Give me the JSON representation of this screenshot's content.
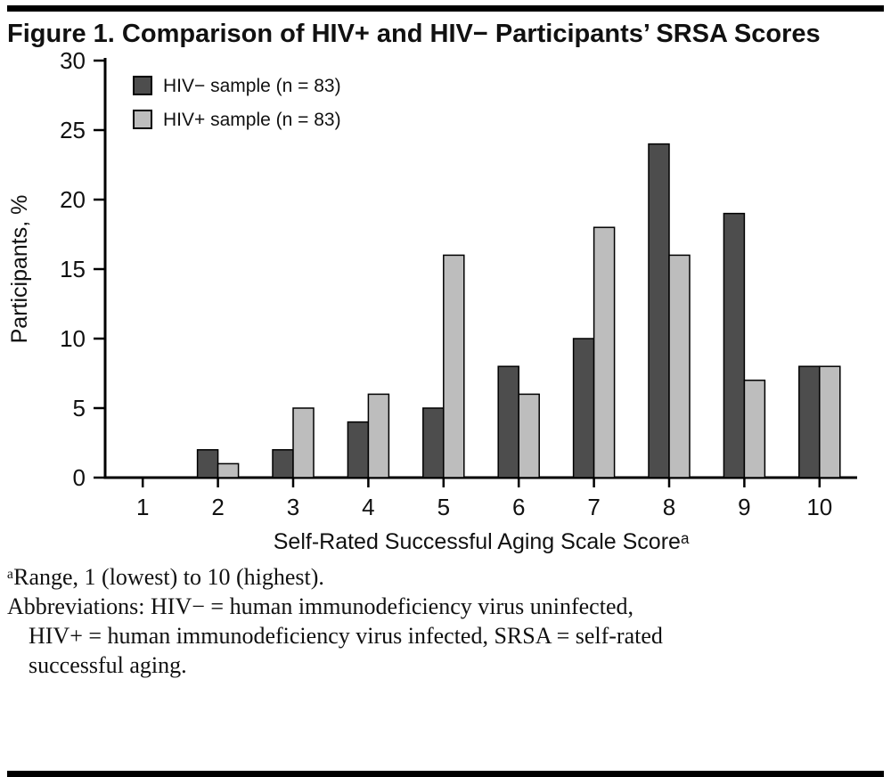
{
  "figure": {
    "label": "Figure 1."
  },
  "chart_data": {
    "type": "bar",
    "title": "Figure 1. Comparison of HIV+ and HIV− Participants’ SRSA Scores",
    "categories": [
      1,
      2,
      3,
      4,
      5,
      6,
      7,
      8,
      9,
      10
    ],
    "series": [
      {
        "name": "HIV− sample (n = 83)",
        "color": "#4d4d4d",
        "values": [
          0,
          2,
          2,
          4,
          5,
          8,
          10,
          24,
          19,
          8
        ]
      },
      {
        "name": "HIV+ sample (n = 83)",
        "color": "#bdbdbd",
        "values": [
          0,
          1,
          5,
          6,
          16,
          6,
          18,
          16,
          7,
          8
        ]
      }
    ],
    "xlabel": "Self-Rated Successful Aging Scale Scoreᵃ",
    "ylabel": "Participants, %",
    "ylim": [
      0,
      30
    ],
    "yticks": [
      0,
      5,
      10,
      15,
      20,
      25,
      30
    ],
    "legend_position": "top-left",
    "grid": false,
    "bar_outline_color": "#000000"
  },
  "footnotes": {
    "range_note": "ᵃRange, 1 (lowest) to 10 (highest).",
    "abbrev_lines": [
      "Abbreviations: HIV− = human immunodeficiency virus uninfected,",
      "HIV+ = human immunodeficiency virus infected, SRSA = self-rated",
      "successful aging."
    ]
  }
}
